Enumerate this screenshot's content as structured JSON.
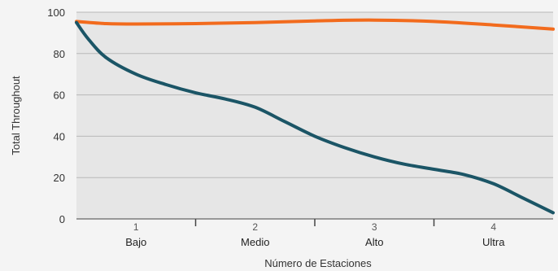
{
  "chart_data": {
    "type": "line",
    "xlabel": "Número de Estaciones",
    "ylabel": "Total Throughout",
    "ylim": [
      0,
      100
    ],
    "yticks": [
      "100",
      "80",
      "60",
      "40",
      "20",
      "0"
    ],
    "categories": [
      {
        "number": "1",
        "name": "Bajo"
      },
      {
        "number": "2",
        "name": "Medio"
      },
      {
        "number": "3",
        "name": "Alto"
      },
      {
        "number": "4",
        "name": "Ultra"
      }
    ],
    "xlim": [
      0.5,
      4.5
    ],
    "grid": true,
    "series": [
      {
        "color": "#f26b1d",
        "x": [
          0.5,
          0.75,
          1.0,
          1.5,
          2.0,
          2.5,
          3.0,
          3.5,
          4.0,
          4.5
        ],
        "y": [
          95.5,
          94.5,
          94.3,
          94.5,
          95.0,
          95.8,
          96.2,
          95.5,
          93.8,
          91.8
        ]
      },
      {
        "color": "#1b5566",
        "x": [
          0.5,
          0.6,
          0.75,
          1.0,
          1.25,
          1.5,
          1.75,
          2.0,
          2.25,
          2.5,
          2.75,
          3.0,
          3.25,
          3.5,
          3.75,
          4.0,
          4.25,
          4.5
        ],
        "y": [
          95,
          87,
          78,
          70,
          65,
          61,
          58,
          54,
          47,
          40,
          34.5,
          30,
          26.5,
          24,
          21.5,
          17,
          10,
          3
        ]
      }
    ]
  }
}
